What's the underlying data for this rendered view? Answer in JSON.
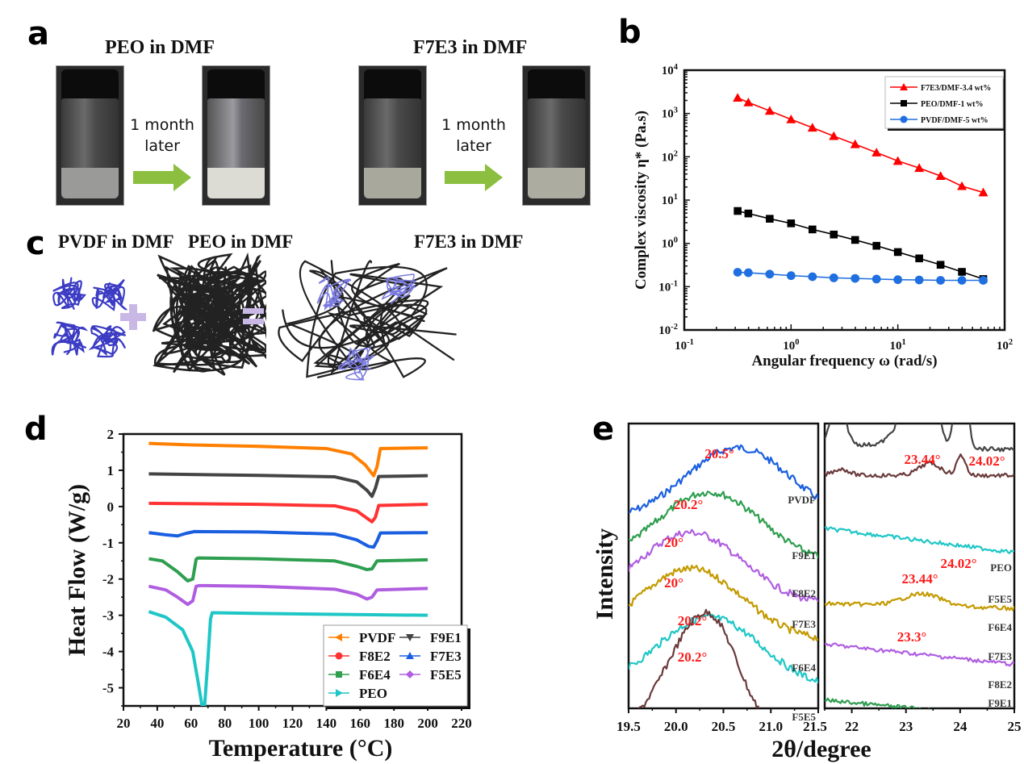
{
  "panels": {
    "a": {
      "label": "a",
      "left_title": "PEO in DMF",
      "right_title": "F7E3 in DMF",
      "arrow_text_line1": "1 month",
      "arrow_text_line2": "later",
      "arrow_color": "#8cbf3f"
    },
    "c": {
      "label": "c",
      "titles": [
        "PVDF in DMF",
        "PEO in DMF",
        "F7E3 in DMF"
      ],
      "pvdf_color": "#3b3bc4",
      "peo_color": "#222222",
      "pvdf_light_color": "#7b7be0",
      "operator_color": "#c9b8e6"
    },
    "b": {
      "label": "b"
    },
    "d": {
      "label": "d"
    },
    "e": {
      "label": "e"
    }
  },
  "chart_data": [
    {
      "id": "b",
      "type": "line",
      "xscale": "log",
      "yscale": "log",
      "xlabel": "Angular frequency ω (rad/s)",
      "ylabel": "Complex viscosity  η* (Pa.s)",
      "xlim": [
        0.1,
        100
      ],
      "ylim": [
        0.01,
        10000
      ],
      "xticks": [
        "10-1",
        "100",
        "101",
        "102"
      ],
      "yticks": [
        "10-2",
        "10-1",
        "100",
        "101",
        "102",
        "103",
        "104"
      ],
      "legend_position": "top-right",
      "x": [
        0.316,
        0.398,
        0.631,
        1.0,
        1.585,
        2.512,
        3.981,
        6.31,
        10.0,
        15.85,
        25.12,
        39.81,
        63.1
      ],
      "series": [
        {
          "name": "F7E3/DMF-3.4 wt%",
          "color": "#ff0000",
          "marker": "triangle",
          "values": [
            2300,
            1800,
            1150,
            730,
            470,
            300,
            195,
            125,
            80,
            55,
            36,
            21,
            15
          ]
        },
        {
          "name": "PEO/DMF-1 wt%",
          "color": "#000000",
          "marker": "square",
          "values": [
            5.6,
            4.9,
            3.7,
            2.9,
            2.1,
            1.6,
            1.2,
            0.88,
            0.63,
            0.45,
            0.32,
            0.22,
            0.15
          ]
        },
        {
          "name": "PVDF/DMF-5 wt%",
          "color": "#1f6fe0",
          "marker": "circle",
          "values": [
            0.215,
            0.21,
            0.195,
            0.18,
            0.17,
            0.16,
            0.155,
            0.15,
            0.145,
            0.143,
            0.14,
            0.14,
            0.14
          ]
        }
      ]
    },
    {
      "id": "d",
      "type": "line",
      "xlabel": "Temperature (°C)",
      "ylabel": "Heat Flow (W/g)",
      "xlim": [
        20,
        220
      ],
      "ylim": [
        -5.5,
        2
      ],
      "xticks": [
        "20",
        "40",
        "60",
        "80",
        "100",
        "120",
        "140",
        "160",
        "180",
        "200",
        "220"
      ],
      "yticks": [
        "2",
        "1",
        "0",
        "-1",
        "-2",
        "-3",
        "-4",
        "-5"
      ],
      "legend_position": "bottom-right",
      "series": [
        {
          "name": "PVDF",
          "color": "#ff8000",
          "marker": "left-triangle",
          "points": [
            [
              35,
              1.74
            ],
            [
              60,
              1.7
            ],
            [
              100,
              1.66
            ],
            [
              140,
              1.6
            ],
            [
              155,
              1.45
            ],
            [
              163,
              1.15
            ],
            [
              168,
              0.85
            ],
            [
              170,
              1.1
            ],
            [
              172,
              1.6
            ],
            [
              200,
              1.62
            ]
          ]
        },
        {
          "name": "F9E1",
          "color": "#444444",
          "marker": "down-triangle",
          "points": [
            [
              35,
              0.9
            ],
            [
              100,
              0.86
            ],
            [
              145,
              0.82
            ],
            [
              158,
              0.68
            ],
            [
              164,
              0.45
            ],
            [
              167,
              0.28
            ],
            [
              169,
              0.5
            ],
            [
              171,
              0.83
            ],
            [
              200,
              0.85
            ]
          ]
        },
        {
          "name": "F8E2",
          "color": "#ff3333",
          "marker": "circle",
          "points": [
            [
              35,
              0.09
            ],
            [
              100,
              0.06
            ],
            [
              145,
              0.02
            ],
            [
              158,
              -0.12
            ],
            [
              164,
              -0.32
            ],
            [
              167,
              -0.42
            ],
            [
              169,
              -0.3
            ],
            [
              171,
              0.03
            ],
            [
              200,
              0.06
            ]
          ]
        },
        {
          "name": "F7E3",
          "color": "#1a5fe0",
          "marker": "up-triangle",
          "points": [
            [
              35,
              -0.72
            ],
            [
              45,
              -0.78
            ],
            [
              52,
              -0.81
            ],
            [
              57,
              -0.74
            ],
            [
              62,
              -0.69
            ],
            [
              100,
              -0.7
            ],
            [
              145,
              -0.76
            ],
            [
              158,
              -0.92
            ],
            [
              165,
              -1.1
            ],
            [
              168,
              -1.12
            ],
            [
              170,
              -0.95
            ],
            [
              172,
              -0.73
            ],
            [
              200,
              -0.72
            ]
          ]
        },
        {
          "name": "F6E4",
          "color": "#2e9e4f",
          "marker": "square",
          "points": [
            [
              35,
              -1.44
            ],
            [
              43,
              -1.5
            ],
            [
              52,
              -1.8
            ],
            [
              58,
              -2.05
            ],
            [
              61,
              -2.0
            ],
            [
              63,
              -1.45
            ],
            [
              64,
              -1.42
            ],
            [
              100,
              -1.44
            ],
            [
              145,
              -1.5
            ],
            [
              158,
              -1.65
            ],
            [
              164,
              -1.74
            ],
            [
              167,
              -1.72
            ],
            [
              170,
              -1.5
            ],
            [
              200,
              -1.47
            ]
          ]
        },
        {
          "name": "F5E5",
          "color": "#b05ee0",
          "marker": "diamond",
          "points": [
            [
              35,
              -2.2
            ],
            [
              45,
              -2.3
            ],
            [
              52,
              -2.5
            ],
            [
              58,
              -2.7
            ],
            [
              61,
              -2.6
            ],
            [
              63,
              -2.2
            ],
            [
              65,
              -2.18
            ],
            [
              100,
              -2.2
            ],
            [
              145,
              -2.28
            ],
            [
              158,
              -2.42
            ],
            [
              164,
              -2.55
            ],
            [
              167,
              -2.5
            ],
            [
              170,
              -2.3
            ],
            [
              200,
              -2.26
            ]
          ]
        },
        {
          "name": "PEO",
          "color": "#1fc6c6",
          "marker": "right-triangle",
          "points": [
            [
              35,
              -2.9
            ],
            [
              45,
              -3.05
            ],
            [
              55,
              -3.4
            ],
            [
              61,
              -4.0
            ],
            [
              64,
              -4.8
            ],
            [
              66.5,
              -5.5
            ],
            [
              68,
              -5.5
            ],
            [
              70,
              -4.2
            ],
            [
              71.5,
              -3.1
            ],
            [
              72.5,
              -2.93
            ],
            [
              100,
              -2.95
            ],
            [
              200,
              -3.0
            ]
          ]
        }
      ]
    },
    {
      "id": "e",
      "type": "line",
      "xlabel": "2θ/degree",
      "ylabel": "Intensity",
      "subplots": [
        {
          "xlim": [
            19.5,
            21.5
          ],
          "xticks": [
            "19.5",
            "20.0",
            "20.5",
            "21.0",
            "21.5"
          ],
          "series": [
            {
              "name": "PVDF",
              "color": "#1a5fe0",
              "peak_label": "20.5°",
              "peak": 20.5
            },
            {
              "name": "F9E1",
              "color": "#2e9e4f",
              "peak_label": "20.2°",
              "peak": 20.2
            },
            {
              "name": "F8E2",
              "color": "#b05ee0",
              "peak_label": "20°",
              "peak": 20.0
            },
            {
              "name": "F7E3",
              "color": "#c49a00",
              "peak_label": "20°",
              "peak": 20.0
            },
            {
              "name": "F6E4",
              "color": "#1fc6c6",
              "peak_label": "20.2°",
              "peak": 20.2
            },
            {
              "name": "F5E5",
              "color": "#6b3a3a",
              "peak_label": "20.2°",
              "peak": 20.2
            }
          ]
        },
        {
          "xlim": [
            21.5,
            25
          ],
          "xticks": [
            "22",
            "23",
            "24",
            "25"
          ],
          "series": [
            {
              "name": "PEO",
              "color": "#444444",
              "peak_labels": [
                "23.44°",
                "24.02°"
              ],
              "peaks": [
                21.75,
                23.44,
                24.02
              ]
            },
            {
              "name": "F5E5",
              "color": "#6b3a3a",
              "peak_labels": [
                "23.44°",
                "24.02°"
              ],
              "peaks": [
                23.44,
                24.02
              ]
            },
            {
              "name": "F6E4",
              "color": "#1fc6c6",
              "peak_labels": [],
              "peaks": []
            },
            {
              "name": "F7E3",
              "color": "#c49a00",
              "peak_labels": [
                "23.3°"
              ],
              "peaks": [
                23.3
              ]
            },
            {
              "name": "F8E2",
              "color": "#b05ee0",
              "peak_labels": [],
              "peaks": []
            },
            {
              "name": "F9E1",
              "color": "#2e9e4f",
              "peak_labels": [],
              "peaks": []
            }
          ]
        }
      ],
      "annotation_color": "#ff1a1a"
    }
  ]
}
